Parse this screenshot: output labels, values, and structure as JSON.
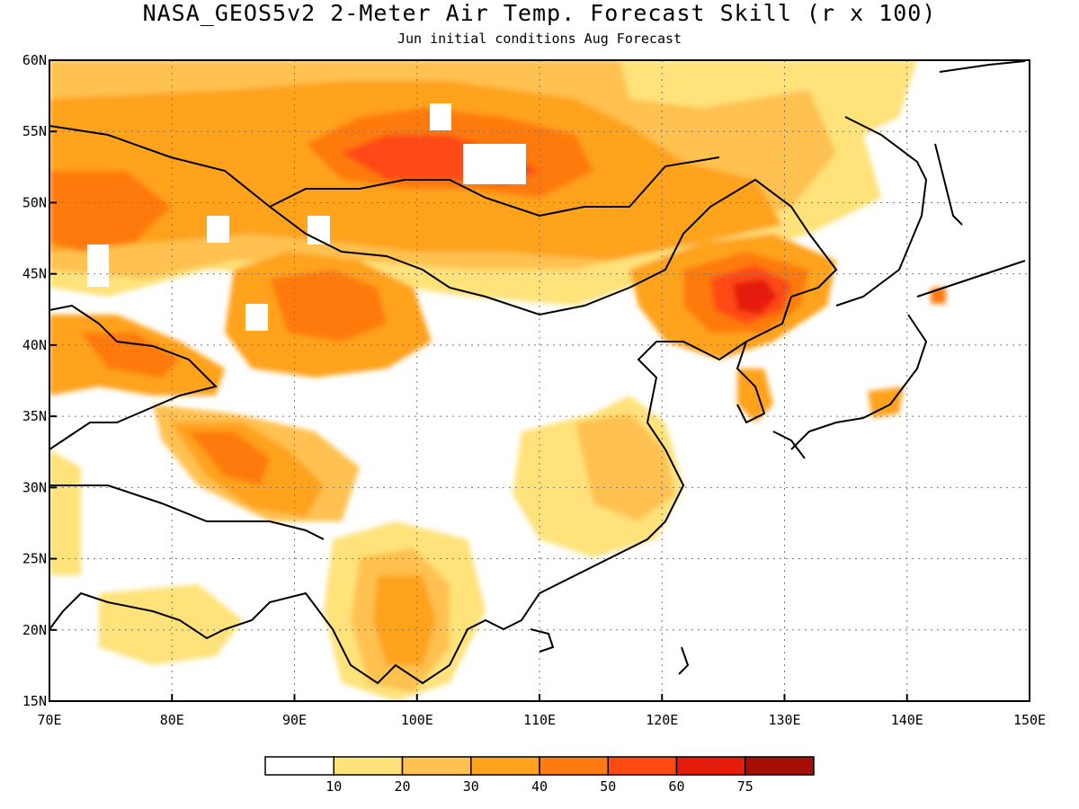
{
  "title": "NASA_GEOS5v2 2-Meter Air Temp. Forecast Skill (r x 100)",
  "subtitle": "Jun initial conditions  Aug Forecast",
  "map": {
    "lon_range": [
      70,
      150
    ],
    "lat_range": [
      15,
      60
    ],
    "lon_ticks": [
      "70E",
      "80E",
      "90E",
      "100E",
      "110E",
      "120E",
      "130E",
      "140E",
      "150E"
    ],
    "lat_ticks": [
      "60N",
      "55N",
      "50N",
      "45N",
      "40N",
      "35N",
      "30N",
      "25N",
      "20N",
      "15N"
    ],
    "grid": "dotted"
  },
  "colorbar": {
    "labels": [
      "10",
      "20",
      "30",
      "40",
      "50",
      "60",
      "75"
    ],
    "colors": [
      "#ffffff",
      "#ffe27a",
      "#ffc14f",
      "#ffa21c",
      "#ff7a0f",
      "#ff4a12",
      "#e51c0c",
      "#a50e05"
    ]
  }
}
